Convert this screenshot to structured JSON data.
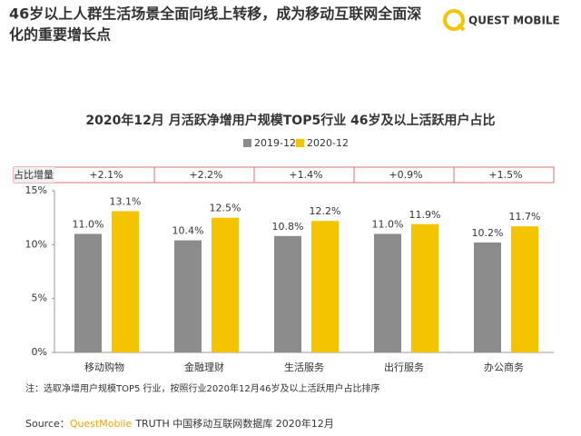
{
  "header": {
    "title_lines": [
      "46岁以上人群生活场景全面向线上转移，成为移动互联网全面深",
      "化的重要增长点"
    ],
    "logo": "QUEST MOBILE"
  },
  "chart_data": {
    "type": "bar",
    "title": "2020年12月 月活跃净增用户规模TOP5行业 46岁及以上活跃用户占比",
    "categories": [
      "移动购物",
      "金融理财",
      "生活服务",
      "出行服务",
      "办公商务"
    ],
    "series": [
      {
        "name": "2019-12",
        "color": "#8c8c8c",
        "values": [
          11.0,
          10.4,
          10.8,
          11.0,
          10.2
        ],
        "value_labels": [
          "11.0%",
          "10.4%",
          "10.8%",
          "11.0%",
          "10.2%"
        ]
      },
      {
        "name": "2020-12",
        "color": "#f5c400",
        "values": [
          13.1,
          12.5,
          12.2,
          11.9,
          11.7
        ],
        "value_labels": [
          "13.1%",
          "12.5%",
          "12.2%",
          "11.9%",
          "11.7%"
        ]
      }
    ],
    "increment_label": "占比增量",
    "increments": [
      "+2.1%",
      "+2.2%",
      "+1.4%",
      "+0.9%",
      "+1.5%"
    ],
    "ylim": [
      0,
      15
    ],
    "yticks": [
      {
        "value": 0,
        "label": "0%"
      },
      {
        "value": 5,
        "label": "5%"
      },
      {
        "value": 10,
        "label": "10%"
      },
      {
        "value": 15,
        "label": "15%"
      }
    ],
    "grid": false,
    "legend": "top"
  },
  "note": "注：选取净增用户规模TOP5 行业，按照行业2020年12月46岁及以上活跃用户占比排序",
  "source": {
    "label": "Source：",
    "brand": "QuestMobile",
    "text": "TRUTH 中国移动互联网数据库 2020年12月"
  }
}
